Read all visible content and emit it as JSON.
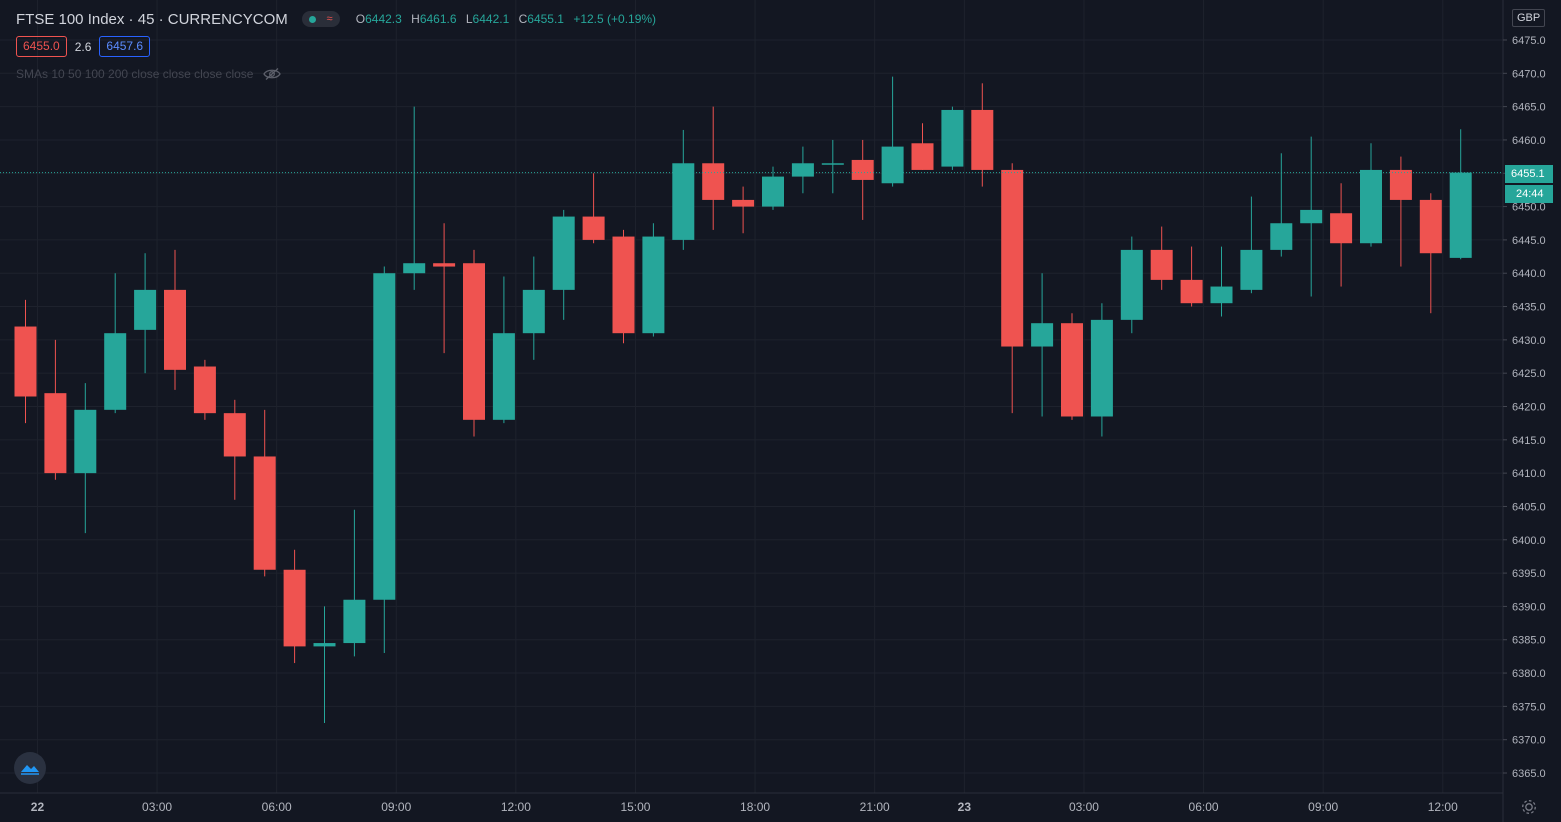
{
  "header": {
    "title": "FTSE 100 Index · 45 · CURRENCYCOM",
    "ohlc": {
      "o_key": "O",
      "o": "6442.3",
      "h_key": "H",
      "h": "6461.6",
      "l_key": "L",
      "l": "6442.1",
      "c_key": "C",
      "c": "6455.1",
      "change": "+12.5 (+0.19%)"
    },
    "bid": "6455.0",
    "spread": "2.6",
    "ask": "6457.6",
    "indicator": "SMAs 10 50 100 200 close close close close",
    "wave_glyph": "≈"
  },
  "currency": "GBP",
  "last_price_label": "6455.1",
  "countdown": "24:44",
  "colors": {
    "up": "#26a69a",
    "down": "#ef5350",
    "background": "#131722",
    "grid": "#1e222d",
    "axis_text": "#b2b5be"
  },
  "icons": {
    "eye": "eye-hidden-icon",
    "logo": "tradingview-logo-icon",
    "settings": "gear-icon",
    "status": "market-status-icon"
  },
  "chart_data": {
    "type": "candlestick",
    "ylim": [
      6362,
      6481
    ],
    "xlim": [
      0,
      50
    ],
    "y_ticks": [
      6365,
      6370,
      6375,
      6380,
      6385,
      6390,
      6395,
      6400,
      6405,
      6410,
      6415,
      6420,
      6425,
      6430,
      6435,
      6440,
      6445,
      6450,
      6455,
      6460,
      6465,
      6470,
      6475
    ],
    "x_ticks": [
      {
        "label": "22",
        "at": 0.4
      },
      {
        "label": "03:00",
        "at": 4.4
      },
      {
        "label": "06:00",
        "at": 8.4
      },
      {
        "label": "09:00",
        "at": 12.4
      },
      {
        "label": "12:00",
        "at": 16.4
      },
      {
        "label": "15:00",
        "at": 20.4
      },
      {
        "label": "18:00",
        "at": 24.4
      },
      {
        "label": "21:00",
        "at": 28.4
      },
      {
        "label": "23",
        "at": 31.4
      },
      {
        "label": "03:00",
        "at": 35.4
      },
      {
        "label": "06:00",
        "at": 39.4
      },
      {
        "label": "09:00",
        "at": 43.4
      },
      {
        "label": "12:00",
        "at": 47.4
      }
    ],
    "last_price": 6455.1,
    "candles": [
      {
        "o": 6432.0,
        "h": 6436.0,
        "l": 6417.5,
        "c": 6421.5
      },
      {
        "o": 6422.0,
        "h": 6430.0,
        "l": 6409.0,
        "c": 6410.0
      },
      {
        "o": 6410.0,
        "h": 6423.5,
        "l": 6401.0,
        "c": 6419.5
      },
      {
        "o": 6419.5,
        "h": 6440.0,
        "l": 6419.0,
        "c": 6431.0
      },
      {
        "o": 6431.5,
        "h": 6443.0,
        "l": 6425.0,
        "c": 6437.5
      },
      {
        "o": 6437.5,
        "h": 6443.5,
        "l": 6422.5,
        "c": 6425.5
      },
      {
        "o": 6426.0,
        "h": 6427.0,
        "l": 6418.0,
        "c": 6419.0
      },
      {
        "o": 6419.0,
        "h": 6421.0,
        "l": 6406.0,
        "c": 6412.5
      },
      {
        "o": 6412.5,
        "h": 6419.5,
        "l": 6394.5,
        "c": 6395.5
      },
      {
        "o": 6395.5,
        "h": 6398.5,
        "l": 6381.5,
        "c": 6384.0
      },
      {
        "o": 6384.0,
        "h": 6390.0,
        "l": 6372.5,
        "c": 6384.5
      },
      {
        "o": 6384.5,
        "h": 6404.5,
        "l": 6382.5,
        "c": 6391.0
      },
      {
        "o": 6391.0,
        "h": 6441.0,
        "l": 6383.0,
        "c": 6440.0
      },
      {
        "o": 6440.0,
        "h": 6465.0,
        "l": 6437.5,
        "c": 6441.5
      },
      {
        "o": 6441.5,
        "h": 6447.5,
        "l": 6428.0,
        "c": 6441.0
      },
      {
        "o": 6441.5,
        "h": 6443.5,
        "l": 6415.5,
        "c": 6418.0
      },
      {
        "o": 6418.0,
        "h": 6439.5,
        "l": 6417.5,
        "c": 6431.0
      },
      {
        "o": 6431.0,
        "h": 6442.5,
        "l": 6427.0,
        "c": 6437.5
      },
      {
        "o": 6437.5,
        "h": 6449.5,
        "l": 6433.0,
        "c": 6448.5
      },
      {
        "o": 6448.5,
        "h": 6455.0,
        "l": 6444.5,
        "c": 6445.0
      },
      {
        "o": 6445.5,
        "h": 6446.5,
        "l": 6429.5,
        "c": 6431.0
      },
      {
        "o": 6431.0,
        "h": 6447.5,
        "l": 6430.5,
        "c": 6445.5
      },
      {
        "o": 6445.0,
        "h": 6461.5,
        "l": 6443.5,
        "c": 6456.5
      },
      {
        "o": 6456.5,
        "h": 6465.0,
        "l": 6446.5,
        "c": 6451.0
      },
      {
        "o": 6451.0,
        "h": 6453.0,
        "l": 6446.0,
        "c": 6450.0
      },
      {
        "o": 6450.0,
        "h": 6456.0,
        "l": 6449.5,
        "c": 6454.5
      },
      {
        "o": 6454.5,
        "h": 6459.0,
        "l": 6452.0,
        "c": 6456.5
      },
      {
        "o": 6456.5,
        "h": 6460.0,
        "l": 6452.0,
        "c": 6456.5
      },
      {
        "o": 6457.0,
        "h": 6460.0,
        "l": 6448.0,
        "c": 6454.0
      },
      {
        "o": 6453.5,
        "h": 6469.5,
        "l": 6453.0,
        "c": 6459.0
      },
      {
        "o": 6459.5,
        "h": 6462.5,
        "l": 6455.5,
        "c": 6455.5
      },
      {
        "o": 6456.0,
        "h": 6465.0,
        "l": 6455.5,
        "c": 6464.5
      },
      {
        "o": 6464.5,
        "h": 6468.5,
        "l": 6453.0,
        "c": 6455.5
      },
      {
        "o": 6455.5,
        "h": 6456.5,
        "l": 6419.0,
        "c": 6429.0
      },
      {
        "o": 6429.0,
        "h": 6440.0,
        "l": 6418.5,
        "c": 6432.5
      },
      {
        "o": 6432.5,
        "h": 6434.0,
        "l": 6418.0,
        "c": 6418.5
      },
      {
        "o": 6418.5,
        "h": 6435.5,
        "l": 6415.5,
        "c": 6433.0
      },
      {
        "o": 6433.0,
        "h": 6445.5,
        "l": 6431.0,
        "c": 6443.5
      },
      {
        "o": 6443.5,
        "h": 6447.0,
        "l": 6437.5,
        "c": 6439.0
      },
      {
        "o": 6439.0,
        "h": 6444.0,
        "l": 6435.0,
        "c": 6435.5
      },
      {
        "o": 6435.5,
        "h": 6444.0,
        "l": 6433.5,
        "c": 6438.0
      },
      {
        "o": 6437.5,
        "h": 6451.5,
        "l": 6437.0,
        "c": 6443.5
      },
      {
        "o": 6443.5,
        "h": 6458.0,
        "l": 6442.5,
        "c": 6447.5
      },
      {
        "o": 6447.5,
        "h": 6460.5,
        "l": 6436.5,
        "c": 6449.5
      },
      {
        "o": 6449.0,
        "h": 6453.5,
        "l": 6438.0,
        "c": 6444.5
      },
      {
        "o": 6444.5,
        "h": 6459.5,
        "l": 6444.0,
        "c": 6455.5
      },
      {
        "o": 6455.5,
        "h": 6457.5,
        "l": 6441.0,
        "c": 6451.0
      },
      {
        "o": 6451.0,
        "h": 6452.0,
        "l": 6434.0,
        "c": 6443.0
      },
      {
        "o": 6442.3,
        "h": 6461.6,
        "l": 6442.1,
        "c": 6455.1
      }
    ]
  }
}
